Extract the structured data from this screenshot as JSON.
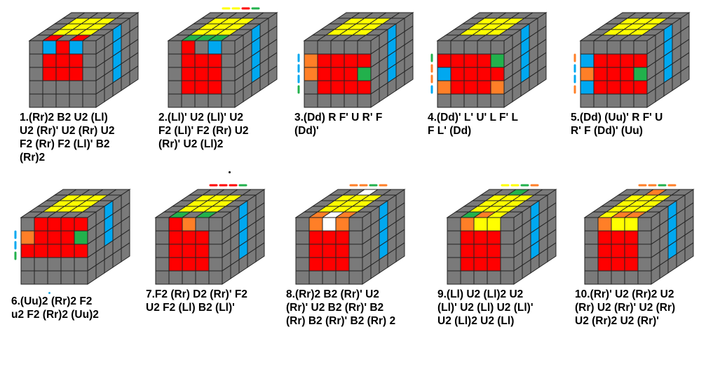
{
  "palette": {
    "grey": "#7a7a7a",
    "yellow": "#ffff00",
    "red": "#ff0000",
    "blue": "#00a8f0",
    "green": "#22b14c",
    "orange": "#ff7f27",
    "white": "#ffffff",
    "line": "#222222"
  },
  "algorithms": [
    {
      "id": 1,
      "lines": [
        "1.(Rr)2 B2 U2 (Ll)",
        "U2 (Rr)' U2 (Rr) U2",
        "F2 (Rr) F2 (Ll)' B2",
        "(Rr)2"
      ]
    },
    {
      "id": 2,
      "lines": [
        "2.(Ll)' U2 (Ll)' U2",
        "F2 (Ll)' F2 (Rr) U2",
        "(Rr)' U2 (Ll)2"
      ]
    },
    {
      "id": 3,
      "lines": [
        "3.(Dd) R F' U R' F",
        "(Dd)'"
      ]
    },
    {
      "id": 4,
      "lines": [
        "4.(Dd)' L' U' L F' L",
        "F L' (Dd)"
      ]
    },
    {
      "id": 5,
      "lines": [
        "5.(Dd) (Uu)' R F' U",
        "R' F (Dd)' (Uu)"
      ]
    },
    {
      "id": 6,
      "lines": [
        "6.(Uu)2 (Rr)2 F2",
        "u2 F2 (Rr)2 (Uu)2"
      ]
    },
    {
      "id": 7,
      "lines": [
        "7.F2 (Rr) D2 (Rr)' F2",
        "U2 F2 (Ll) B2 (Ll)'"
      ]
    },
    {
      "id": 8,
      "lines": [
        "8.(Rr)2 B2 (Rr)' U2",
        "(Rr)' U2 B2 (Rr)' B2",
        "(Rr) B2 (Rr)' B2 (Rr) 2"
      ]
    },
    {
      "id": 9,
      "lines": [
        "9.(Ll) U2 (Ll)2 U2",
        "(Ll)' U2 (Ll) U2 (Ll)'",
        "U2 (Ll)2 U2 (Ll)"
      ]
    },
    {
      "id": 10,
      "lines": [
        "10.(Rr)' U2 (Rr)2 U2",
        "(Rr) U2 (Rr)' U2 (Rr)",
        "U2 (Rr)2 U2 (Rr)'"
      ]
    }
  ],
  "cubes": [
    {
      "top": [
        "ggggg",
        "gYYYg",
        "gYYYg",
        "gYYYg",
        "gRgRg"
      ],
      "front": [
        "gBRBg",
        "gRRRg",
        "gRRRg",
        "ggggg",
        "ggggg"
      ],
      "side": [
        "ggBgg",
        "ggBgg",
        "ggBgg",
        "ggBgg",
        "ggggg"
      ],
      "marks": []
    },
    {
      "top": [
        "ggggg",
        "gYYYg",
        "gYYYg",
        "gYYYg",
        "gGGGg"
      ],
      "front": [
        "gRgBg",
        "gRRRg",
        "gRRRg",
        "gRRRg",
        "ggggg"
      ],
      "side": [
        "ggBgg",
        "ggBgg",
        "ggBgg",
        "ggBgg",
        "ggggg"
      ],
      "marks": [
        {
          "pos": "top",
          "colors": [
            "Y",
            "Y",
            "R",
            "G"
          ]
        }
      ]
    },
    {
      "top": [
        "ggggg",
        "gYYYg",
        "gYYYg",
        "gYYYg",
        "ggggg"
      ],
      "front": [
        "ggggg",
        "ORRRR",
        "ORRRG",
        "gRRRR",
        "ggggg"
      ],
      "side": [
        "ggBgg",
        "ggBgg",
        "ggBgg",
        "ggBgg",
        "ggggg"
      ],
      "marks": [
        {
          "pos": "left",
          "colors": [
            "B",
            "B",
            "B",
            "G"
          ]
        }
      ]
    },
    {
      "top": [
        "ggggg",
        "gYYYg",
        "gYYYg",
        "gYYYg",
        "ggggg"
      ],
      "front": [
        "ggggg",
        "RRRRG",
        "BRRRR",
        "ORRRO",
        "ggggg"
      ],
      "side": [
        "ggBgg",
        "ggBgg",
        "ggBgg",
        "ggBgg",
        "ggggg"
      ],
      "marks": [
        {
          "pos": "left",
          "colors": [
            "G",
            "O",
            "O",
            "B"
          ]
        }
      ]
    },
    {
      "top": [
        "ggggg",
        "gYYYg",
        "gYYYg",
        "gYYYg",
        "ggggg"
      ],
      "front": [
        "ggggg",
        "BRRRR",
        "ORRRG",
        "BRRRR",
        "ggggg"
      ],
      "side": [
        "ggBgg",
        "ggBgg",
        "ggBgg",
        "ggBgg",
        "ggggg"
      ],
      "marks": [
        {
          "pos": "left",
          "colors": [
            "O",
            "B",
            "B",
            "O"
          ]
        }
      ]
    },
    {
      "top": [
        "ggggg",
        "gYYYg",
        "gYYYg",
        "gYYYg",
        "ggggg"
      ],
      "front": [
        "gRRRR",
        "ORRRG",
        "RRRRR",
        "ggggg",
        "ggggg"
      ],
      "side": [
        "ggBgg",
        "ggBgg",
        "ggBgg",
        "ggggg",
        "ggggg"
      ],
      "marks": [
        {
          "pos": "left",
          "colors": [
            "B",
            "B",
            "G"
          ]
        }
      ]
    },
    {
      "top": [
        "ggggg",
        "gYYYg",
        "gYYYg",
        "gYYYg",
        "gGgGg"
      ],
      "front": [
        "gROgg",
        "gRRRg",
        "gRRRg",
        "gRRRg",
        "ggggg"
      ],
      "side": [
        "ggBgg",
        "ggBgg",
        "ggBgg",
        "ggBgg",
        "ggggg"
      ],
      "marks": [
        {
          "pos": "top",
          "colors": [
            "R",
            "R",
            "R",
            "G"
          ]
        }
      ]
    },
    {
      "top": [
        "ggWgg",
        "gYYYg",
        "gYYYg",
        "gYYYg",
        "gOWOg"
      ],
      "front": [
        "gOWOg",
        "gRRRg",
        "gRRRg",
        "gRRRg",
        "ggggg"
      ],
      "side": [
        "ggBgg",
        "ggBgg",
        "ggBgg",
        "ggBgg",
        "ggggg"
      ],
      "marks": [
        {
          "pos": "top",
          "colors": [
            "O",
            "O",
            "G",
            "O"
          ]
        }
      ]
    },
    {
      "top": [
        "ggGgg",
        "gYYYg",
        "gYYYg",
        "gYYYg",
        "gGOYg"
      ],
      "front": [
        "gOYYg",
        "gRRRg",
        "gRRRg",
        "gRRRg",
        "ggggg"
      ],
      "side": [
        "ggBgg",
        "ggBgg",
        "ggBgg",
        "ggBgg",
        "ggggg"
      ],
      "marks": [
        {
          "pos": "top",
          "colors": [
            "Y",
            "Y",
            "G",
            "O"
          ]
        }
      ]
    },
    {
      "top": [
        "ggOgg",
        "gYYYg",
        "gYYYg",
        "gYYYg",
        "gYOOg"
      ],
      "front": [
        "gOYYg",
        "gRRRg",
        "gRRRg",
        "gRRRg",
        "ggggg"
      ],
      "side": [
        "ggBgg",
        "ggBgg",
        "ggBgg",
        "ggBgg",
        "ggggg"
      ],
      "marks": [
        {
          "pos": "top",
          "colors": [
            "O",
            "O",
            "G",
            "O"
          ]
        }
      ]
    }
  ]
}
